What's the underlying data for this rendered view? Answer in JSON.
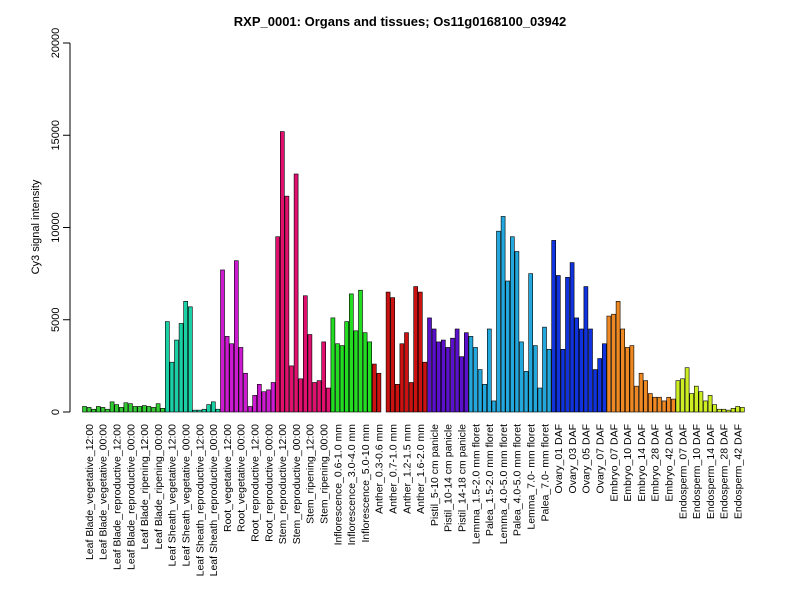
{
  "chart_data": {
    "type": "bar",
    "title": "RXP_0001: Organs and tissues; Os11g0168100_03942",
    "xlabel": "",
    "ylabel": "Cy3 signal intensity",
    "ylim": [
      0,
      20000
    ],
    "yticks": [
      0,
      5000,
      10000,
      15000,
      20000
    ],
    "grid": false,
    "groups": [
      {
        "color": "#33cc33",
        "values": [
          300,
          250,
          150
        ]
      },
      {
        "color": "#33cc33",
        "values": [
          300,
          250,
          150
        ]
      },
      {
        "color": "#33cc33",
        "values": [
          550,
          400,
          250
        ]
      },
      {
        "color": "#33cc33",
        "values": [
          500,
          450,
          300
        ]
      },
      {
        "color": "#33cc33",
        "values": [
          300,
          350,
          300
        ]
      },
      {
        "color": "#33cc33",
        "values": [
          250,
          450,
          200
        ]
      },
      {
        "color": "#1ad1a6",
        "values": [
          4900,
          2700,
          3900
        ]
      },
      {
        "color": "#1ad1a6",
        "values": [
          4800,
          6000,
          5700
        ]
      },
      {
        "color": "#1ad1a6",
        "values": [
          100,
          100,
          150
        ]
      },
      {
        "color": "#1ad1a6",
        "values": [
          400,
          550,
          150
        ]
      },
      {
        "color": "#cc1ad1",
        "values": [
          7700,
          4100,
          3700
        ]
      },
      {
        "color": "#cc1ad1",
        "values": [
          8200,
          3500,
          2100
        ]
      },
      {
        "color": "#cc1ad1",
        "values": [
          300,
          900,
          1500
        ]
      },
      {
        "color": "#cc1ad1",
        "values": [
          1100,
          1200,
          1600
        ]
      },
      {
        "color": "#e0116e",
        "values": [
          9500,
          15200,
          11700
        ]
      },
      {
        "color": "#e0116e",
        "values": [
          2500,
          12900,
          1800
        ]
      },
      {
        "color": "#e0116e",
        "values": [
          6300,
          4200,
          1600
        ]
      },
      {
        "color": "#e0116e",
        "values": [
          1700,
          3800,
          1300
        ]
      },
      {
        "color": "#22dd22",
        "values": [
          5100,
          3700,
          3600
        ]
      },
      {
        "color": "#22dd22",
        "values": [
          4900,
          6400,
          4400
        ]
      },
      {
        "color": "#22dd22",
        "values": [
          6600,
          4300,
          3800
        ]
      },
      {
        "color": "#cc1111",
        "values": [
          2600,
          2100,
          0
        ]
      },
      {
        "color": "#cc1111",
        "values": [
          6500,
          6200,
          1500
        ]
      },
      {
        "color": "#cc1111",
        "values": [
          3700,
          4300,
          1600
        ]
      },
      {
        "color": "#cc1111",
        "values": [
          6800,
          6500,
          2700
        ]
      },
      {
        "color": "#5b11cc",
        "values": [
          5100,
          4500,
          3800
        ]
      },
      {
        "color": "#5b11cc",
        "values": [
          3900,
          3500,
          4000
        ]
      },
      {
        "color": "#5b11cc",
        "values": [
          4500,
          3000,
          4300
        ]
      },
      {
        "color": "#22a8dd",
        "values": [
          4100,
          3500,
          2300
        ]
      },
      {
        "color": "#22a8dd",
        "values": [
          1500,
          4500,
          600
        ]
      },
      {
        "color": "#22a8dd",
        "values": [
          9800,
          10600,
          7100
        ]
      },
      {
        "color": "#22a8dd",
        "values": [
          9500,
          8700,
          3800
        ]
      },
      {
        "color": "#22a8dd",
        "values": [
          2200,
          7500,
          3600
        ]
      },
      {
        "color": "#22a8dd",
        "values": [
          1300,
          4600,
          3400
        ]
      },
      {
        "color": "#1133dd",
        "values": [
          9300,
          7400,
          3400
        ]
      },
      {
        "color": "#1133dd",
        "values": [
          7300,
          8100,
          5100
        ]
      },
      {
        "color": "#1133dd",
        "values": [
          4500,
          6800,
          4500
        ]
      },
      {
        "color": "#1133dd",
        "values": [
          2300,
          2900,
          3700
        ]
      },
      {
        "color": "#ee8822",
        "values": [
          5200,
          5300,
          6000
        ]
      },
      {
        "color": "#ee8822",
        "values": [
          4500,
          3500,
          3600
        ]
      },
      {
        "color": "#ee8822",
        "values": [
          1400,
          2100,
          1700
        ]
      },
      {
        "color": "#ee8822",
        "values": [
          1000,
          800,
          800
        ]
      },
      {
        "color": "#ee8822",
        "values": [
          600,
          800,
          700
        ]
      },
      {
        "color": "#ccee22",
        "values": [
          1700,
          1800,
          2400
        ]
      },
      {
        "color": "#ccee22",
        "values": [
          1000,
          1400,
          1100
        ]
      },
      {
        "color": "#ccee22",
        "values": [
          600,
          900,
          400
        ]
      },
      {
        "color": "#ccee22",
        "values": [
          150,
          150,
          100
        ]
      },
      {
        "color": "#ccee22",
        "values": [
          200,
          300,
          250
        ]
      }
    ],
    "category_labels": [
      "Leaf Blade_vegetative_12:00",
      "Leaf Blade_vegetative_00:00",
      "Leaf Blade_reproductive_12:00",
      "Leaf Blade_reproductive_00:00",
      "Leaf Blade_ripening_12:00",
      "Leaf Blade_ripening_00:00",
      "Leaf Sheath_vegetative_12:00",
      "Leaf Sheath_vegetative_00:00",
      "Leaf Sheath_reproductive_12:00",
      "Leaf Sheath_reproductive_00:00",
      "Root_vegetative_12:00",
      "Root_vegetative_00:00",
      "Root_reproductive_12:00",
      "Root_reproductive_00:00",
      "Stem_reproductive_12:00",
      "Stem_reproductive_00:00",
      "Stem_ripening_12:00",
      "Stem_ripening_00:00",
      "Inflorescence_0.6-1.0 mm",
      "Inflorescence_3.0-4.0 mm",
      "Inflorescence_5.0-10 mm",
      "Anther_0.3-0.6 mm",
      "Anther_0.7-1.0 mm",
      "Anther_1.2-1.5 mm",
      "Anther_1.6-2.0 mm",
      "Pistil_5-10 cm panicle",
      "Pistil_10-14 cm panicle",
      "Pistil_14-18 cm panicle",
      "Lemma_1.5-2.0 mm floret",
      "Palea_1.5-2.0 mm floret",
      "Lemma_4.0-5.0 mm floret",
      "Palea_4.0-5.0 mm floret",
      "Lemma_7.0- mm floret",
      "Palea_7.0- mm floret",
      "Ovary_01 DAF",
      "Ovary_03 DAF",
      "Ovary_05 DAF",
      "Ovary_07 DAF",
      "Embryo_07 DAF",
      "Embryo_10 DAF",
      "Embryo_14 DAF",
      "Embryo_28 DAF",
      "Embryo_42 DAF",
      "Endosperm_07 DAF",
      "Endosperm_10 DAF",
      "Endosperm_14 DAF",
      "Endosperm_28 DAF",
      "Endosperm_42 DAF"
    ]
  }
}
